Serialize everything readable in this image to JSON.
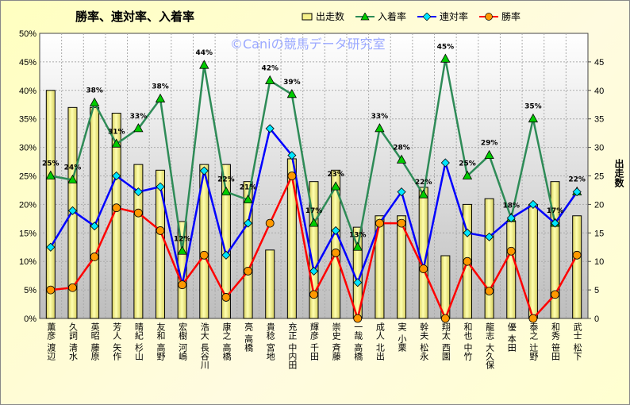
{
  "chart_data": {
    "type": "bar+line",
    "title": "勝率、連対率、入着率",
    "watermark": "©Caniの競馬データ研究室",
    "y_left": {
      "range": [
        0,
        50
      ],
      "unit": "%",
      "ticks": [
        "0%",
        "5%",
        "10%",
        "15%",
        "20%",
        "25%",
        "30%",
        "35%",
        "40%",
        "45%",
        "50%"
      ]
    },
    "y_right": {
      "label": "出走数",
      "range": [
        0,
        45
      ],
      "ticks": [
        "0",
        "5",
        "10",
        "15",
        "20",
        "25",
        "30",
        "35",
        "40",
        "45"
      ]
    },
    "grid": true,
    "legend_position": "top",
    "categories": [
      [
        "渡辺",
        "薫彦"
      ],
      [
        "清水",
        "久詞"
      ],
      [
        "藤原",
        "英昭"
      ],
      [
        "矢作",
        "芳人"
      ],
      [
        "杉山",
        "晴紀"
      ],
      [
        "高野",
        "友和"
      ],
      [
        "河嶋",
        "宏樹"
      ],
      [
        "長谷川",
        "浩大"
      ],
      [
        "高橋",
        "康之"
      ],
      [
        "高橋",
        "亮"
      ],
      [
        "宮地",
        "貴稔"
      ],
      [
        "中内田",
        "充正"
      ],
      [
        "千田",
        "輝彦"
      ],
      [
        "斉藤",
        "崇史"
      ],
      [
        "高橋",
        "一哉"
      ],
      [
        "北出",
        "成人"
      ],
      [
        "小栗",
        "実"
      ],
      [
        "松永",
        "幹夫"
      ],
      [
        "西園",
        "翔太"
      ],
      [
        "中竹",
        "和也"
      ],
      [
        "大久保",
        "龍志"
      ],
      [
        "本田",
        "優"
      ],
      [
        "辻野",
        "泰之"
      ],
      [
        "笹田",
        "和秀"
      ],
      [
        "松下",
        "武士"
      ]
    ],
    "series": [
      {
        "name": "出走数",
        "type": "bar",
        "axis": "right",
        "color": "#f5f08a",
        "values": [
          40,
          37,
          37,
          36,
          27,
          26,
          17,
          27,
          27,
          24,
          12,
          28,
          24,
          26,
          16,
          18,
          18,
          23,
          11,
          20,
          21,
          17,
          20,
          24,
          18
        ]
      },
      {
        "name": "入着率",
        "type": "line",
        "axis": "left",
        "color": "#2e8b57",
        "marker": "triangle",
        "marker_color": "#00cc00",
        "values": [
          25,
          24.3,
          37.8,
          30.6,
          33.3,
          38.5,
          11.8,
          44.4,
          22.2,
          20.8,
          41.7,
          39.3,
          16.7,
          23.1,
          12.5,
          33.3,
          27.8,
          21.7,
          45.5,
          25,
          28.6,
          17.6,
          35,
          16.7,
          22.2
        ],
        "labels": [
          "25%",
          "24%",
          "38%",
          "31%",
          "33%",
          "38%",
          "12%",
          "44%",
          "22%",
          "21%",
          "42%",
          "39%",
          "17%",
          "23%",
          "13%",
          "33%",
          "28%",
          "22%",
          "45%",
          "25%",
          "29%",
          "18%",
          "35%",
          "17%",
          "22%"
        ]
      },
      {
        "name": "連対率",
        "type": "line",
        "axis": "left",
        "color": "#0000ff",
        "marker": "diamond",
        "marker_color": "#00e5ff",
        "values": [
          12.5,
          18.9,
          16.2,
          25,
          22.2,
          23.1,
          5.9,
          25.9,
          11.1,
          16.7,
          33.3,
          28.6,
          8.3,
          15.4,
          6.3,
          16.7,
          22.2,
          8.7,
          27.3,
          15,
          14.3,
          17.6,
          20,
          16.7,
          22.2
        ]
      },
      {
        "name": "勝率",
        "type": "line",
        "axis": "left",
        "color": "#ff0000",
        "marker": "circle",
        "marker_color": "#ff9900",
        "values": [
          5,
          5.4,
          10.8,
          19.4,
          18.5,
          15.4,
          5.9,
          11.1,
          3.7,
          8.3,
          16.7,
          25,
          4.2,
          11.5,
          0,
          16.7,
          16.7,
          8.7,
          0,
          10,
          4.8,
          11.8,
          0,
          4.2,
          11.1
        ]
      }
    ]
  }
}
